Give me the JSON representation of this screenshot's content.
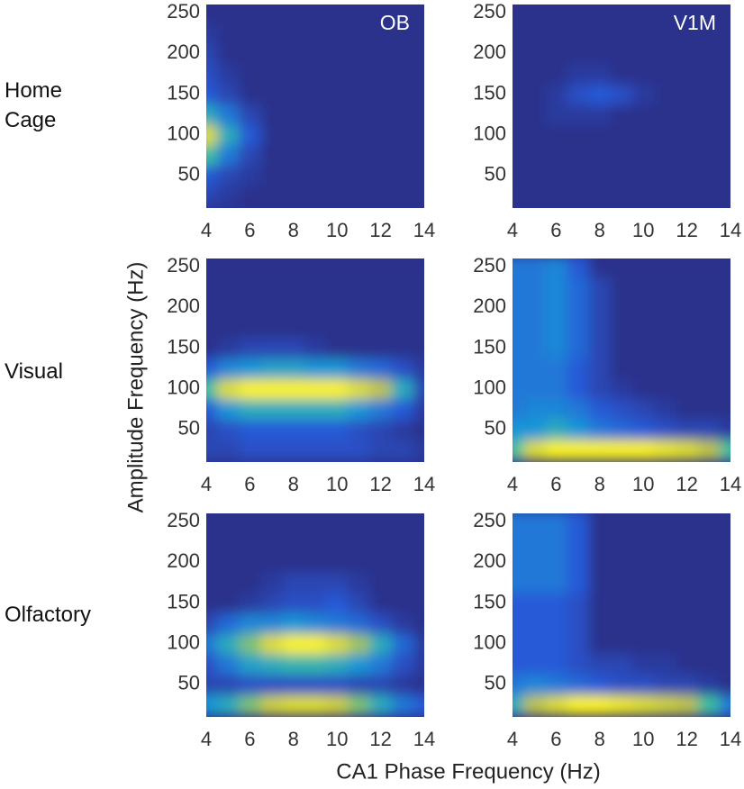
{
  "row_labels": [
    "Home Cage",
    "Visual",
    "Olfactory"
  ],
  "x_label": "CA1 Phase Frequency (Hz)",
  "y_label": "Amplitude Frequency (Hz)",
  "chart_data": [
    {
      "type": "heatmap",
      "title": "OB",
      "colormap": "parula",
      "x": [
        4,
        5,
        6,
        7,
        8,
        9,
        10,
        11,
        12,
        13,
        14
      ],
      "y": [
        25,
        50,
        75,
        100,
        125,
        150,
        175,
        200,
        225,
        250
      ],
      "xlim": [
        4,
        14
      ],
      "ylim": [
        10,
        260
      ],
      "xticks": [
        4,
        6,
        8,
        10,
        12,
        14
      ],
      "yticks": [
        50,
        100,
        150,
        200,
        250
      ],
      "z": [
        [
          0.1,
          0.05,
          0,
          0,
          0,
          0,
          0,
          0,
          0,
          0,
          0
        ],
        [
          0.2,
          0.1,
          0.05,
          0,
          0,
          0,
          0,
          0,
          0,
          0,
          0
        ],
        [
          0.6,
          0.3,
          0.1,
          0,
          0,
          0,
          0,
          0,
          0,
          0,
          0
        ],
        [
          0.9,
          0.5,
          0.2,
          0,
          0,
          0,
          0,
          0,
          0,
          0,
          0
        ],
        [
          0.5,
          0.3,
          0.1,
          0,
          0,
          0,
          0,
          0,
          0,
          0,
          0
        ],
        [
          0.2,
          0.1,
          0,
          0,
          0,
          0,
          0,
          0,
          0,
          0,
          0
        ],
        [
          0.15,
          0.05,
          0,
          0,
          0,
          0,
          0,
          0,
          0,
          0,
          0
        ],
        [
          0.1,
          0,
          0,
          0,
          0,
          0,
          0,
          0,
          0,
          0,
          0
        ],
        [
          0.05,
          0,
          0,
          0,
          0,
          0,
          0,
          0,
          0,
          0,
          0
        ],
        [
          0,
          0,
          0,
          0,
          0,
          0,
          0,
          0,
          0,
          0,
          0
        ]
      ]
    },
    {
      "type": "heatmap",
      "title": "V1M",
      "colormap": "parula",
      "x": [
        4,
        5,
        6,
        7,
        8,
        9,
        10,
        11,
        12,
        13,
        14
      ],
      "y": [
        25,
        50,
        75,
        100,
        125,
        150,
        175,
        200,
        225,
        250
      ],
      "xlim": [
        4,
        14
      ],
      "ylim": [
        10,
        260
      ],
      "xticks": [
        4,
        6,
        8,
        10,
        12,
        14
      ],
      "yticks": [
        50,
        100,
        150,
        200,
        250
      ],
      "z": [
        [
          0,
          0,
          0,
          0,
          0,
          0,
          0,
          0,
          0,
          0,
          0
        ],
        [
          0,
          0,
          0,
          0,
          0,
          0,
          0,
          0,
          0,
          0,
          0
        ],
        [
          0,
          0,
          0,
          0,
          0,
          0,
          0,
          0,
          0,
          0,
          0
        ],
        [
          0,
          0,
          0,
          0,
          0,
          0,
          0,
          0,
          0,
          0,
          0
        ],
        [
          0,
          0,
          0.05,
          0.05,
          0.05,
          0,
          0,
          0,
          0,
          0,
          0
        ],
        [
          0,
          0,
          0.05,
          0.15,
          0.2,
          0.15,
          0.05,
          0,
          0,
          0,
          0
        ],
        [
          0,
          0,
          0,
          0.05,
          0.05,
          0,
          0,
          0,
          0,
          0,
          0
        ],
        [
          0,
          0,
          0,
          0,
          0,
          0,
          0,
          0,
          0,
          0,
          0
        ],
        [
          0,
          0,
          0,
          0,
          0,
          0,
          0,
          0,
          0,
          0,
          0
        ],
        [
          0,
          0,
          0,
          0,
          0,
          0,
          0,
          0,
          0,
          0,
          0
        ]
      ]
    },
    {
      "type": "heatmap",
      "colormap": "parula",
      "x": [
        4,
        5,
        6,
        7,
        8,
        9,
        10,
        11,
        12,
        13,
        14
      ],
      "y": [
        25,
        50,
        75,
        100,
        125,
        150,
        175,
        200,
        225,
        250
      ],
      "xlim": [
        4,
        14
      ],
      "ylim": [
        10,
        260
      ],
      "xticks": [
        4,
        6,
        8,
        10,
        12,
        14
      ],
      "yticks": [
        50,
        100,
        150,
        200,
        250
      ],
      "z": [
        [
          0.1,
          0.1,
          0.15,
          0.15,
          0.15,
          0.15,
          0.15,
          0.15,
          0.1,
          0.1,
          0.05
        ],
        [
          0.1,
          0.15,
          0.2,
          0.2,
          0.2,
          0.2,
          0.2,
          0.15,
          0.1,
          0.05,
          0
        ],
        [
          0.2,
          0.4,
          0.5,
          0.5,
          0.5,
          0.5,
          0.5,
          0.4,
          0.3,
          0.2,
          0.05
        ],
        [
          0.6,
          0.9,
          1,
          1,
          1,
          1,
          1,
          0.9,
          0.8,
          0.5,
          0.1
        ],
        [
          0.2,
          0.35,
          0.4,
          0.45,
          0.45,
          0.4,
          0.4,
          0.3,
          0.25,
          0.15,
          0.05
        ],
        [
          0,
          0.05,
          0.1,
          0.1,
          0.1,
          0.05,
          0,
          0,
          0,
          0,
          0
        ],
        [
          0,
          0,
          0,
          0,
          0,
          0,
          0,
          0,
          0,
          0,
          0
        ],
        [
          0,
          0,
          0,
          0,
          0,
          0,
          0,
          0,
          0,
          0,
          0
        ],
        [
          0,
          0,
          0,
          0,
          0,
          0,
          0,
          0,
          0,
          0,
          0
        ],
        [
          0,
          0,
          0,
          0,
          0,
          0,
          0,
          0,
          0,
          0,
          0
        ]
      ]
    },
    {
      "type": "heatmap",
      "colormap": "parula",
      "x": [
        4,
        5,
        6,
        7,
        8,
        9,
        10,
        11,
        12,
        13,
        14
      ],
      "y": [
        25,
        50,
        75,
        100,
        125,
        150,
        175,
        200,
        225,
        250
      ],
      "xlim": [
        4,
        14
      ],
      "ylim": [
        10,
        260
      ],
      "xticks": [
        4,
        6,
        8,
        10,
        12,
        14
      ],
      "yticks": [
        50,
        100,
        150,
        200,
        250
      ],
      "z": [
        [
          0.6,
          0.9,
          1,
          1,
          1,
          1,
          1,
          0.95,
          0.9,
          0.8,
          0.6
        ],
        [
          0.4,
          0.4,
          0.5,
          0.4,
          0.3,
          0.25,
          0.2,
          0.15,
          0.1,
          0.1,
          0.05
        ],
        [
          0.3,
          0.35,
          0.35,
          0.3,
          0.2,
          0.15,
          0.1,
          0.05,
          0,
          0,
          0
        ],
        [
          0.3,
          0.3,
          0.3,
          0.2,
          0.1,
          0.05,
          0,
          0,
          0,
          0,
          0
        ],
        [
          0.3,
          0.3,
          0.3,
          0.2,
          0.1,
          0,
          0,
          0,
          0,
          0,
          0
        ],
        [
          0.3,
          0.3,
          0.35,
          0.25,
          0.1,
          0,
          0,
          0,
          0,
          0,
          0
        ],
        [
          0.3,
          0.3,
          0.35,
          0.25,
          0.1,
          0,
          0,
          0,
          0,
          0,
          0
        ],
        [
          0.3,
          0.3,
          0.35,
          0.25,
          0.1,
          0,
          0,
          0,
          0,
          0,
          0
        ],
        [
          0.3,
          0.3,
          0.35,
          0.25,
          0.1,
          0,
          0,
          0,
          0,
          0,
          0
        ],
        [
          0.3,
          0.3,
          0.35,
          0.2,
          0,
          0,
          0,
          0,
          0,
          0,
          0
        ]
      ]
    },
    {
      "type": "heatmap",
      "colormap": "parula",
      "x": [
        4,
        5,
        6,
        7,
        8,
        9,
        10,
        11,
        12,
        13,
        14
      ],
      "y": [
        25,
        50,
        75,
        100,
        125,
        150,
        175,
        200,
        225,
        250
      ],
      "xlim": [
        4,
        14
      ],
      "ylim": [
        10,
        260
      ],
      "xticks": [
        4,
        6,
        8,
        10,
        12,
        14
      ],
      "yticks": [
        50,
        100,
        150,
        200,
        250
      ],
      "z": [
        [
          0.4,
          0.5,
          0.7,
          0.85,
          0.9,
          0.9,
          0.85,
          0.7,
          0.5,
          0.3,
          0.2
        ],
        [
          0.1,
          0.1,
          0.15,
          0.15,
          0.15,
          0.15,
          0.15,
          0.1,
          0.1,
          0.05,
          0
        ],
        [
          0.15,
          0.3,
          0.45,
          0.5,
          0.55,
          0.55,
          0.5,
          0.4,
          0.3,
          0.15,
          0.05
        ],
        [
          0.3,
          0.5,
          0.7,
          0.9,
          1,
          1,
          0.9,
          0.75,
          0.5,
          0.25,
          0.05
        ],
        [
          0.1,
          0.25,
          0.35,
          0.35,
          0.4,
          0.35,
          0.3,
          0.25,
          0.15,
          0.05,
          0
        ],
        [
          0,
          0,
          0.05,
          0.1,
          0.15,
          0.15,
          0.2,
          0.1,
          0,
          0,
          0
        ],
        [
          0,
          0,
          0,
          0.05,
          0.1,
          0.1,
          0.1,
          0.05,
          0,
          0,
          0
        ],
        [
          0,
          0,
          0,
          0,
          0,
          0,
          0,
          0,
          0,
          0,
          0
        ],
        [
          0,
          0,
          0,
          0,
          0,
          0,
          0,
          0,
          0,
          0,
          0
        ],
        [
          0,
          0,
          0,
          0,
          0,
          0,
          0,
          0,
          0,
          0,
          0
        ]
      ]
    },
    {
      "type": "heatmap",
      "colormap": "parula",
      "x": [
        4,
        5,
        6,
        7,
        8,
        9,
        10,
        11,
        12,
        13,
        14
      ],
      "y": [
        25,
        50,
        75,
        100,
        125,
        150,
        175,
        200,
        225,
        250
      ],
      "xlim": [
        4,
        14
      ],
      "ylim": [
        10,
        260
      ],
      "xticks": [
        4,
        6,
        8,
        10,
        12,
        14
      ],
      "yticks": [
        50,
        100,
        150,
        200,
        250
      ],
      "z": [
        [
          0.5,
          0.8,
          0.9,
          1,
          1,
          0.95,
          0.9,
          0.85,
          0.8,
          0.6,
          0.3
        ],
        [
          0.3,
          0.35,
          0.3,
          0.25,
          0.2,
          0.15,
          0.15,
          0.1,
          0.1,
          0.05,
          0
        ],
        [
          0.2,
          0.2,
          0.2,
          0.15,
          0.1,
          0.1,
          0.05,
          0.05,
          0,
          0,
          0
        ],
        [
          0.2,
          0.2,
          0.2,
          0.15,
          0,
          0,
          0,
          0,
          0,
          0,
          0
        ],
        [
          0.2,
          0.2,
          0.2,
          0.15,
          0,
          0,
          0,
          0,
          0,
          0,
          0
        ],
        [
          0.2,
          0.2,
          0.2,
          0.15,
          0,
          0,
          0,
          0,
          0,
          0,
          0
        ],
        [
          0.3,
          0.3,
          0.3,
          0.2,
          0,
          0,
          0,
          0,
          0,
          0,
          0
        ],
        [
          0.3,
          0.3,
          0.3,
          0.2,
          0,
          0,
          0,
          0,
          0,
          0,
          0
        ],
        [
          0.3,
          0.3,
          0.3,
          0.2,
          0,
          0,
          0,
          0,
          0,
          0,
          0
        ],
        [
          0.3,
          0.3,
          0.3,
          0.2,
          0,
          0,
          0,
          0,
          0,
          0,
          0
        ]
      ]
    }
  ]
}
